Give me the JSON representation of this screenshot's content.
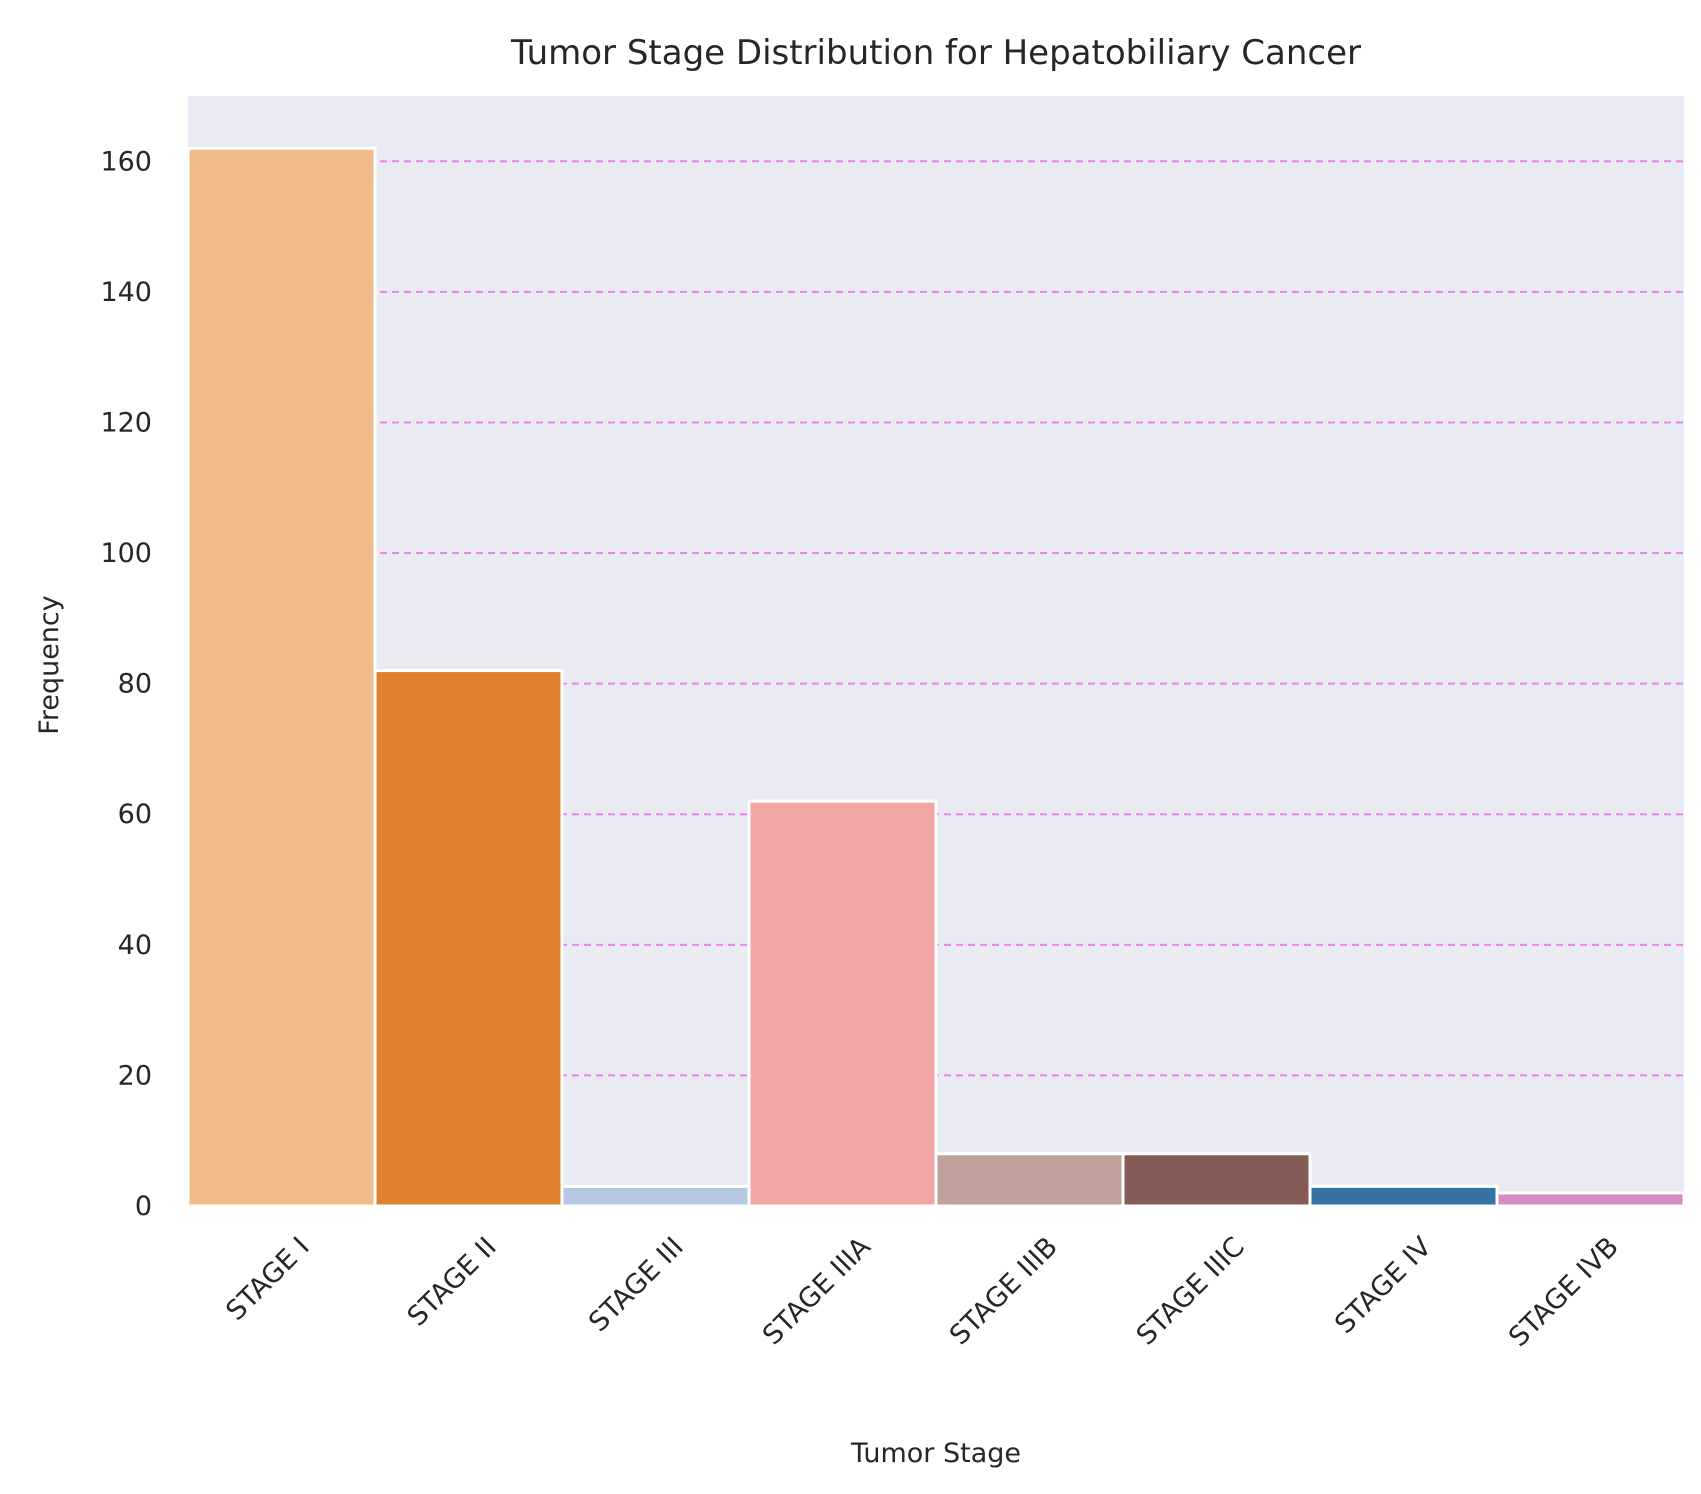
{
  "chart_data": {
    "type": "bar",
    "title": "Tumor Stage Distribution for Hepatobiliary Cancer",
    "xlabel": "Tumor Stage",
    "ylabel": "Frequency",
    "categories": [
      "STAGE I",
      "STAGE II",
      "STAGE III",
      "STAGE IIIA",
      "STAGE IIIB",
      "STAGE IIIC",
      "STAGE IV",
      "STAGE IVB"
    ],
    "values": [
      162,
      82,
      3,
      62,
      8,
      8,
      3,
      2
    ],
    "colors": [
      "#EFBB8A",
      "#E0812E",
      "#B5C7E2",
      "#F2A5A5",
      "#BFA09A",
      "#845C55",
      "#3474A4",
      "#D58BC5"
    ],
    "ylim": [
      0,
      170
    ],
    "yticks": [
      0,
      20,
      40,
      60,
      80,
      100,
      120,
      140,
      160
    ],
    "grid": "horizontal-dashed",
    "grid_color": "#EE82EE",
    "background_color": "#EAEAF2"
  }
}
